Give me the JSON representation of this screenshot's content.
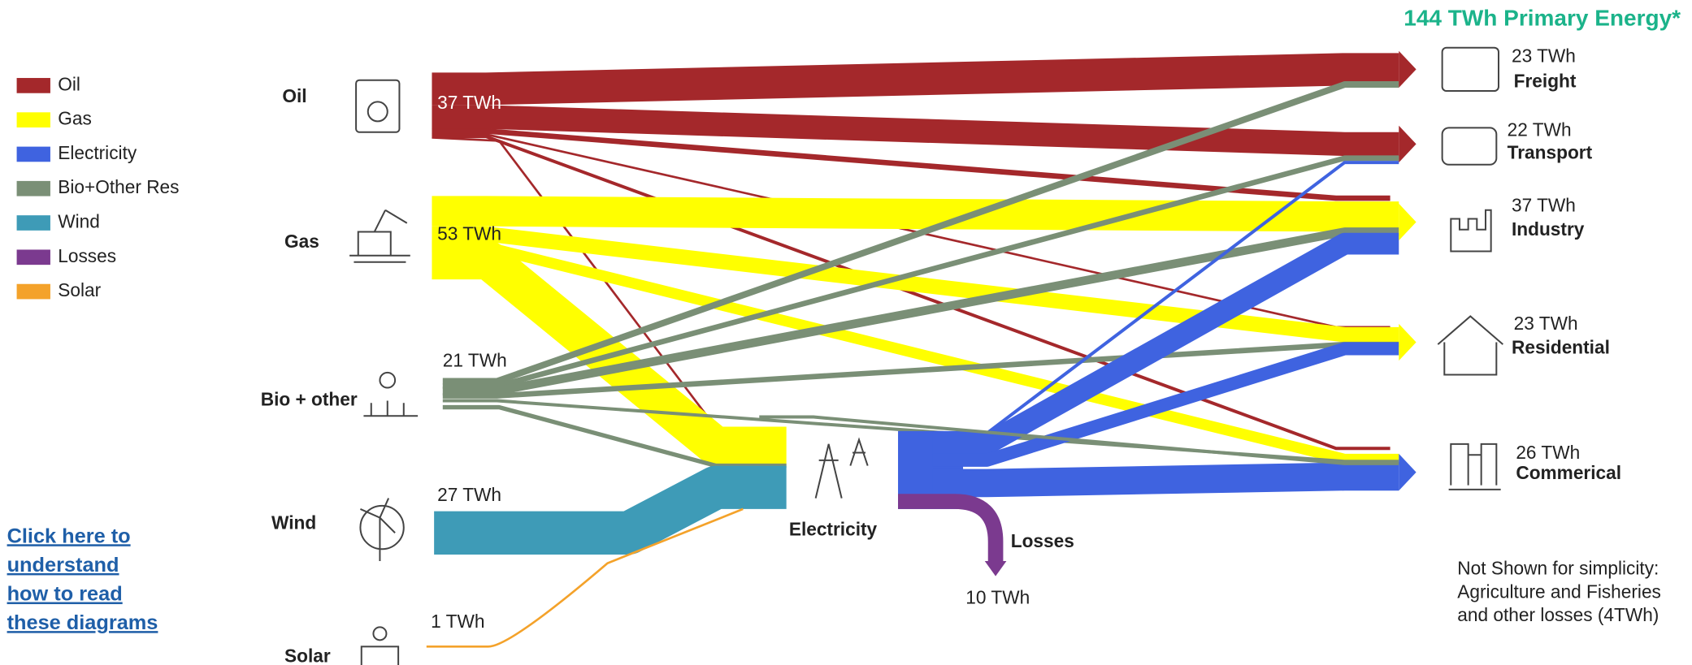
{
  "title": "144 TWh Primary Energy*",
  "legend": [
    {
      "label": "Oil",
      "color": "#a4282b"
    },
    {
      "label": "Gas",
      "color": "#ffff00"
    },
    {
      "label": "Electricity",
      "color": "#3f63e0"
    },
    {
      "label": "Bio+Other Res",
      "color": "#7a8f76"
    },
    {
      "label": "Wind",
      "color": "#3e9bb7"
    },
    {
      "label": "Losses",
      "color": "#7b3a8f"
    },
    {
      "label": "Solar",
      "color": "#f4a22a"
    }
  ],
  "sources": [
    {
      "label": "Oil",
      "value": "37 TWh"
    },
    {
      "label": "Gas",
      "value": "53 TWh"
    },
    {
      "label": "Bio + other",
      "value": "21 TWh"
    },
    {
      "label": "Wind",
      "value": "27 TWh"
    },
    {
      "label": "Solar",
      "value": "1 TWh"
    }
  ],
  "sinks": [
    {
      "label": "Freight",
      "value": "23 TWh"
    },
    {
      "label": "Transport",
      "value": "22 TWh"
    },
    {
      "label": "Industry",
      "value": "37 TWh"
    },
    {
      "label": "Residential",
      "value": "23 TWh"
    },
    {
      "label": "Commerical",
      "value": "26 TWh"
    }
  ],
  "electricity": {
    "label": "Electricity"
  },
  "losses": {
    "label": "Losses",
    "value": "10 TWh"
  },
  "link": {
    "lines": [
      "Click here to",
      "understand",
      "how to read",
      "these diagrams"
    ]
  },
  "note": {
    "lines": [
      "Not Shown for simplicity:",
      "Agriculture and Fisheries",
      "and other losses (4TWh)"
    ]
  }
}
